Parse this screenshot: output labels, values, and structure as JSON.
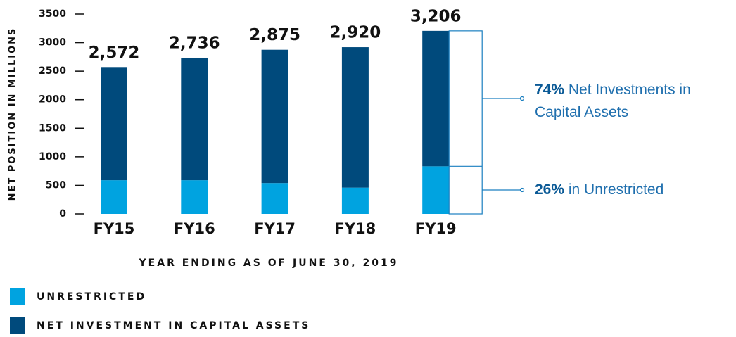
{
  "chart_data": {
    "type": "stacked_bar",
    "categories": [
      "FY15",
      "FY16",
      "FY17",
      "FY18",
      "FY19"
    ],
    "series": [
      {
        "name": "UNRESTRICTED",
        "color": "#00a3e0",
        "values": [
          590,
          590,
          540,
          460,
          834
        ]
      },
      {
        "name": "NET INVESTMENT IN CAPITAL ASSETS",
        "color": "#004a7c",
        "values": [
          1982,
          2146,
          2335,
          2460,
          2372
        ]
      }
    ],
    "totals": [
      2572,
      2736,
      2875,
      2920,
      3206
    ],
    "total_labels": [
      "2,572",
      "2,736",
      "2,875",
      "2,920",
      "3,206"
    ],
    "ylim": [
      0,
      3500
    ],
    "yticks": [
      0,
      500,
      1000,
      1500,
      2000,
      2500,
      3000,
      3500
    ],
    "ylabel": "NET POSITION IN MILLIONS",
    "xlabel": "YEAR ENDING AS OF JUNE 30, 2019",
    "annotations": [
      {
        "highlight": "74%",
        "lines": [
          "Net Investments in",
          "Capital Assets"
        ]
      },
      {
        "highlight": "26%",
        "lines": [
          "in Unrestricted"
        ]
      }
    ]
  }
}
